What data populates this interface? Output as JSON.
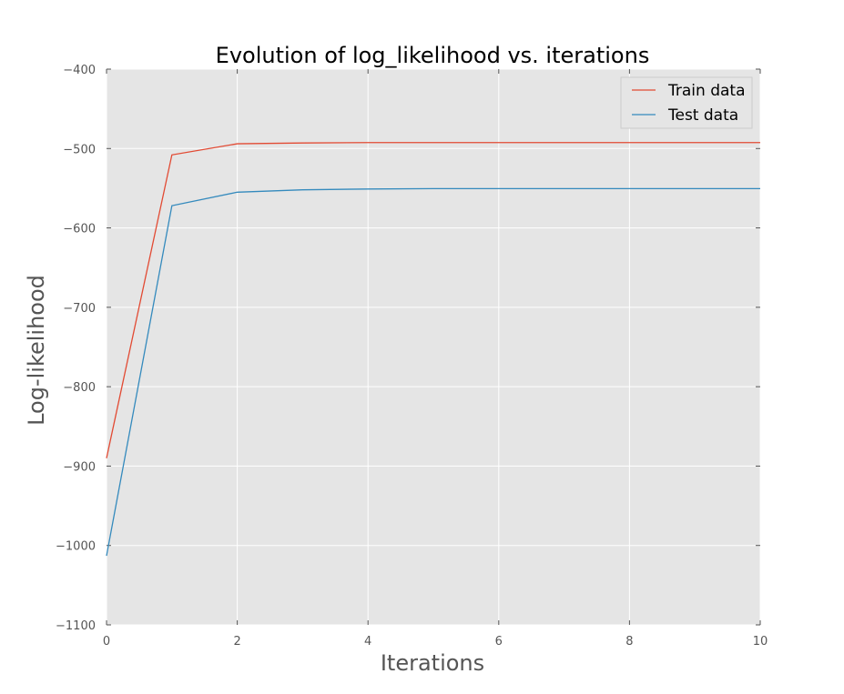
{
  "chart_data": {
    "type": "line",
    "title": "Evolution of log_likelihood vs. iterations",
    "xlabel": "Iterations",
    "ylabel": "Log-likelihood",
    "xlim": [
      0,
      10
    ],
    "ylim": [
      -1100,
      -400
    ],
    "xticks": [
      0,
      2,
      4,
      6,
      8,
      10
    ],
    "yticks": [
      -1100,
      -1000,
      -900,
      -800,
      -700,
      -600,
      -500,
      -400
    ],
    "xtick_labels": [
      "0",
      "2",
      "4",
      "6",
      "8",
      "10"
    ],
    "ytick_labels": [
      "−1100",
      "−1000",
      "−900",
      "−800",
      "−700",
      "−600",
      "−500",
      "−400"
    ],
    "grid": true,
    "legend_position": "top-right",
    "x": [
      0,
      1,
      2,
      3,
      4,
      5,
      6,
      7,
      8,
      9,
      10
    ],
    "series": [
      {
        "name": "Train data",
        "color": "#E24A33",
        "values": [
          -890,
          -508,
          -494,
          -493,
          -492.5,
          -492.5,
          -492.5,
          -492.5,
          -492.5,
          -492.5,
          -492.5
        ]
      },
      {
        "name": "Test data",
        "color": "#348ABD",
        "values": [
          -1013,
          -572,
          -555,
          -552,
          -551,
          -550.5,
          -550.5,
          -550.5,
          -550.5,
          -550.5,
          -550.5
        ]
      }
    ],
    "background_color": "#E5E5E5",
    "grid_color": "#FFFFFF"
  }
}
